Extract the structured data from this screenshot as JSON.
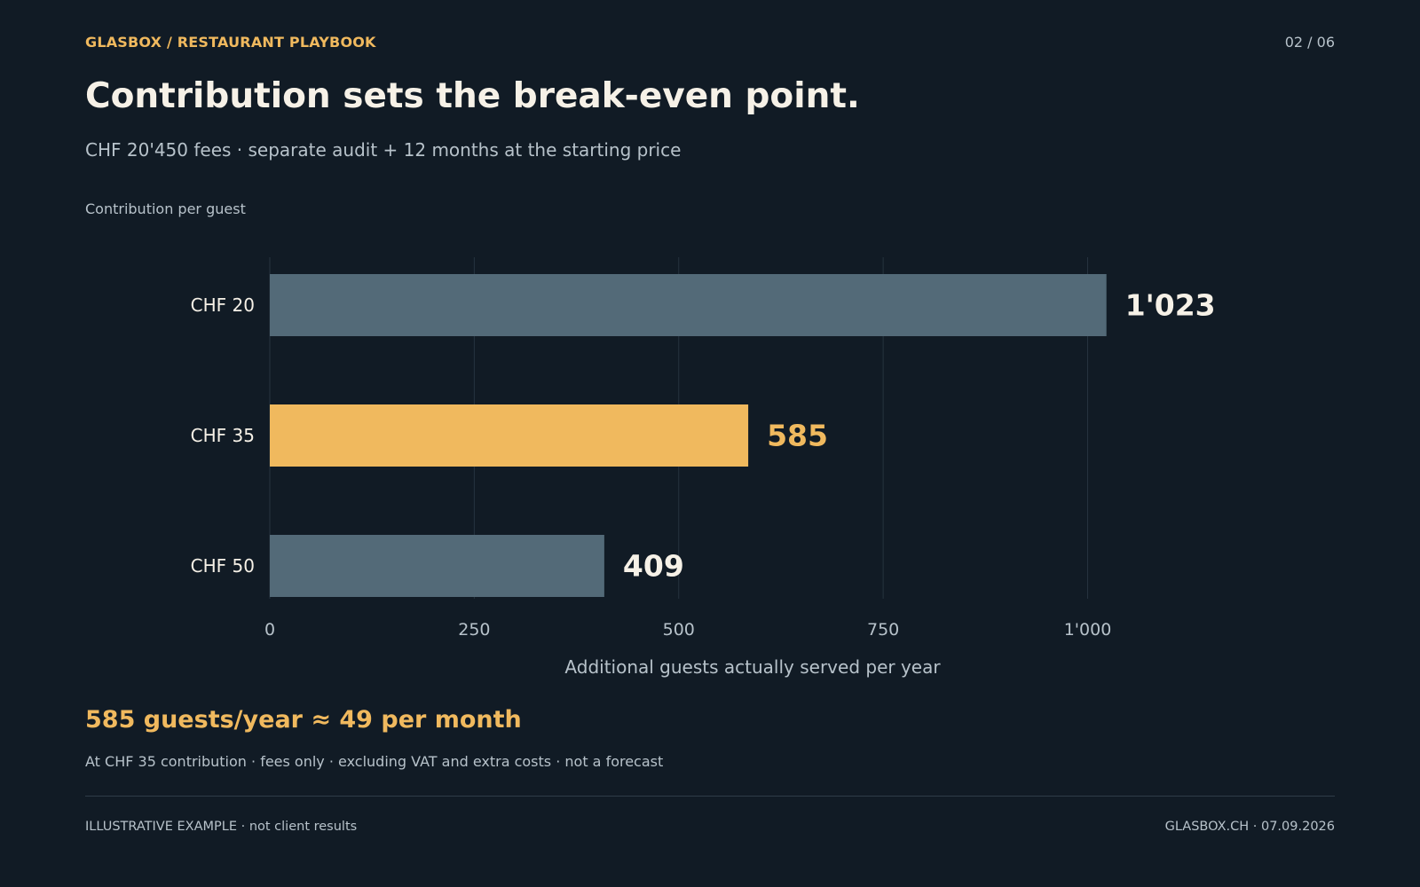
{
  "header": {
    "brand": "GLASBOX  /  RESTAURANT PLAYBOOK",
    "page": "02  /  06",
    "title": "Contribution sets the break-even point.",
    "subtitle": "CHF 20'450 fees · separate audit + 12 months at the starting price"
  },
  "chart_data": {
    "type": "bar",
    "orientation": "horizontal",
    "title": "Contribution per guest",
    "categories": [
      "CHF 20",
      "CHF 35",
      "CHF 50"
    ],
    "values": [
      1023,
      585,
      409
    ],
    "value_labels": [
      "1'023",
      "585",
      "409"
    ],
    "highlight_index": 1,
    "colors": {
      "bar": "#536a78",
      "highlight": "#f0b95e",
      "label": "#f6f1e7",
      "grid": "#26333f",
      "tick": "#b7c2ca"
    },
    "xlabel": "Additional guests actually served per year",
    "xlim": [
      0,
      1150
    ],
    "xticks": [
      0,
      250,
      500,
      750,
      1000
    ],
    "xtick_labels": [
      "0",
      "250",
      "500",
      "750",
      "1'000"
    ],
    "grid": true,
    "legend": "none"
  },
  "summary": {
    "headline": "585 guests/year ≈ 49 per month",
    "note": "At CHF 35 contribution · fees only · excluding VAT and extra costs · not a forecast"
  },
  "footer": {
    "left": "ILLUSTRATIVE EXAMPLE · not client results",
    "right": "GLASBOX.CH  ·  07.09.2026"
  }
}
